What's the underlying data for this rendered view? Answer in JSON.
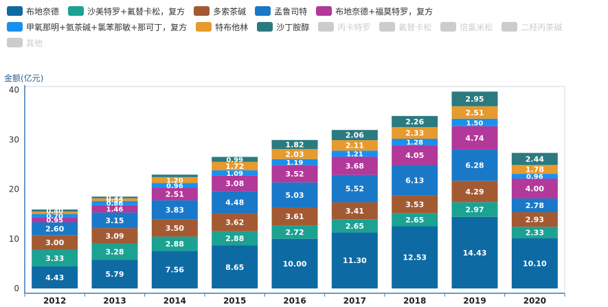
{
  "chart_data": {
    "type": "bar",
    "stacked": true,
    "ylabel": "金额(亿元)",
    "ylim": [
      0,
      40
    ],
    "yticks": [
      0,
      10,
      20,
      30,
      40
    ],
    "grid": false,
    "legend_position": "top",
    "categories": [
      "2012",
      "2013",
      "2014",
      "2015",
      "2016",
      "2017",
      "2018",
      "2019",
      "2020"
    ],
    "series": [
      {
        "name": "布地奈德",
        "color": "#0e6aa3",
        "values": [
          4.43,
          5.79,
          7.56,
          8.65,
          10.0,
          11.3,
          12.53,
          14.43,
          10.1
        ],
        "labels": [
          "4.43",
          "5.79",
          "7.56",
          "8.65",
          "10.00",
          "11.30",
          "12.53",
          "14.43",
          "10.10"
        ]
      },
      {
        "name": "沙美特罗+氟替卡松，复方",
        "color": "#1ba293",
        "values": [
          3.33,
          3.28,
          2.88,
          2.88,
          2.72,
          2.65,
          2.65,
          2.97,
          2.33
        ],
        "labels": [
          "3.33",
          "3.28",
          "2.88",
          "2.88",
          "2.72",
          "2.65",
          "2.65",
          "2.97",
          "2.33"
        ]
      },
      {
        "name": "多索茶碱",
        "color": "#a35a33",
        "values": [
          3.0,
          3.09,
          3.5,
          3.62,
          3.61,
          3.41,
          3.53,
          4.29,
          2.93
        ],
        "labels": [
          "3.00",
          "3.09",
          "3.50",
          "3.62",
          "3.61",
          "3.41",
          "3.53",
          "4.29",
          "2.93"
        ]
      },
      {
        "name": "孟鲁司特",
        "color": "#1a78c8",
        "values": [
          2.6,
          3.15,
          3.83,
          4.48,
          5.03,
          5.52,
          6.13,
          6.28,
          2.78
        ],
        "labels": [
          "2.60",
          "3.15",
          "3.83",
          "4.48",
          "5.03",
          "5.52",
          "6.13",
          "6.28",
          "2.78"
        ]
      },
      {
        "name": "布地奈德+福莫特罗，复方",
        "color": "#b2389a",
        "values": [
          0.95,
          1.46,
          2.51,
          3.08,
          3.52,
          3.68,
          4.05,
          4.74,
          4.0
        ],
        "labels": [
          "0.95",
          "1.46",
          "2.51",
          "3.08",
          "3.52",
          "3.68",
          "4.05",
          "4.74",
          "4.00"
        ]
      },
      {
        "name": "甲氧那明+氨茶碱+氯苯那敏+那可丁，复方",
        "color": "#1890f0",
        "values": [
          0.7,
          0.86,
          0.96,
          1.09,
          1.19,
          1.21,
          1.28,
          1.5,
          0.96
        ],
        "labels": [
          "0.70",
          "0.86",
          "0.96",
          "1.09",
          "1.19",
          "1.21",
          "1.28",
          "1.50",
          "0.96"
        ]
      },
      {
        "name": "特布他林",
        "color": "#e79a2d",
        "values": [
          0.5,
          0.55,
          1.2,
          1.72,
          2.03,
          2.11,
          2.33,
          2.51,
          1.78
        ],
        "labels": [
          "",
          "0.55",
          "1.20",
          "1.72",
          "2.03",
          "2.11",
          "2.33",
          "2.51",
          "1.78"
        ]
      },
      {
        "name": "沙丁胺醇",
        "color": "#2b7a80",
        "values": [
          0.4,
          0.33,
          0.5,
          0.99,
          1.82,
          2.06,
          2.26,
          2.95,
          2.44
        ],
        "labels": [
          "0.40",
          "0.33",
          "",
          "0.99",
          "1.82",
          "2.06",
          "2.26",
          "2.95",
          "2.44"
        ]
      }
    ],
    "hidden_series": [
      {
        "name": "丙卡特罗",
        "color": "#cccccc"
      },
      {
        "name": "氟替卡松",
        "color": "#cccccc"
      },
      {
        "name": "倍氯米松",
        "color": "#cccccc"
      },
      {
        "name": "二羟丙茶碱",
        "color": "#cccccc"
      },
      {
        "name": "其他",
        "color": "#cccccc"
      }
    ]
  }
}
